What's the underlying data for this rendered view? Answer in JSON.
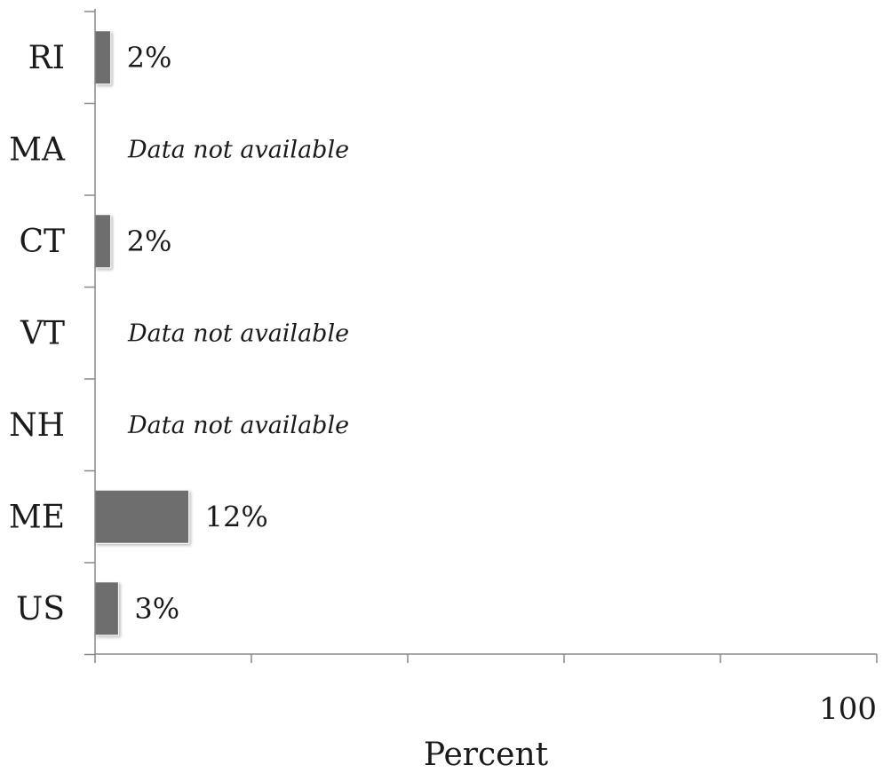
{
  "chart_data": {
    "type": "bar",
    "orientation": "horizontal",
    "categories": [
      "RI",
      "MA",
      "CT",
      "VT",
      "NH",
      "ME",
      "US"
    ],
    "values": [
      2,
      null,
      2,
      null,
      null,
      12,
      3
    ],
    "value_labels": [
      "2%",
      "Data not available",
      "2%",
      "Data not available",
      "Data not available",
      "12%",
      "3%"
    ],
    "xlim": [
      0,
      100
    ],
    "x_ticks": [
      0,
      20,
      40,
      60,
      80,
      100
    ],
    "x_tick_labels": [
      "",
      "",
      "",
      "",
      "",
      "100"
    ],
    "xlabel": "Percent",
    "bar_color": "#6e6e6e",
    "grid": false,
    "legend": "none"
  }
}
